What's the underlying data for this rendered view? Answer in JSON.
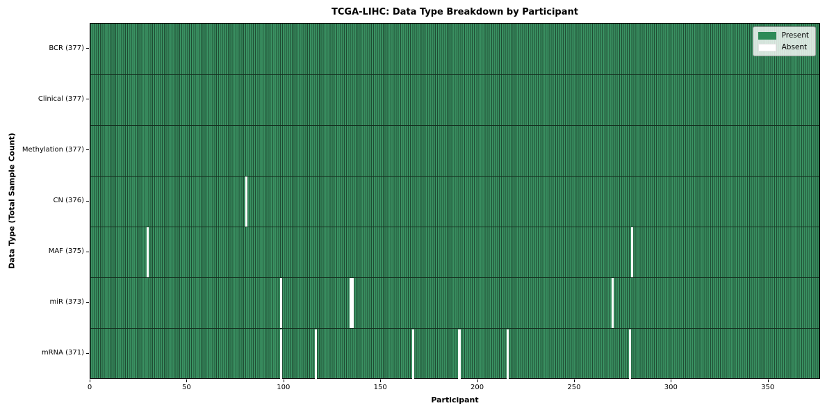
{
  "title": "TCGA-LIHC: Data Type Breakdown by Participant",
  "chart_data": {
    "type": "heatmap",
    "title": "TCGA-LIHC: Data Type Breakdown by Participant",
    "xlabel": "Participant",
    "ylabel": "Data Type (Total Sample Count)",
    "x_ticks": [
      0,
      50,
      100,
      150,
      200,
      250,
      300,
      350
    ],
    "xlim": [
      0,
      377
    ],
    "n_participants": 377,
    "grid": false,
    "legend": {
      "position": "upper right",
      "entries": [
        {
          "label": "Present",
          "color": "#2E8B57"
        },
        {
          "label": "Absent",
          "color": "#FFFFFF"
        }
      ]
    },
    "rows": [
      {
        "label": "BCR (377)",
        "name": "BCR",
        "total": 377,
        "absent_participants": []
      },
      {
        "label": "Clinical (377)",
        "name": "Clinical",
        "total": 377,
        "absent_participants": []
      },
      {
        "label": "Methylation (377)",
        "name": "Methylation",
        "total": 377,
        "absent_participants": []
      },
      {
        "label": "CN (376)",
        "name": "CN",
        "total": 376,
        "absent_participants": [
          80
        ]
      },
      {
        "label": "MAF (375)",
        "name": "MAF",
        "total": 375,
        "absent_participants": [
          29,
          279
        ]
      },
      {
        "label": "miR (373)",
        "name": "miR",
        "total": 373,
        "absent_participants": [
          98,
          134,
          135,
          269
        ]
      },
      {
        "label": "mRNA (371)",
        "name": "mRNA",
        "total": 371,
        "absent_participants": [
          98,
          116,
          166,
          190,
          215,
          278
        ]
      }
    ],
    "colors": {
      "present": "#2E8B57",
      "present_fill": "#3A9162",
      "cell_edge": "#1F4C33",
      "absent": "#FFFFFF",
      "row_divider": "#142F1F",
      "axis": "#000000"
    }
  }
}
